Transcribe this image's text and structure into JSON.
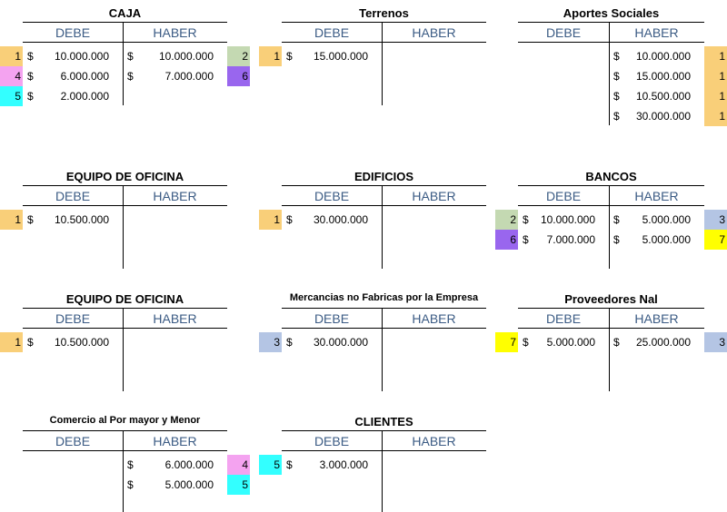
{
  "accounts": [
    {
      "title": "CAJA",
      "debe": {
        "label": "DEBE",
        "entries": [
          {
            "ref": "1",
            "color": "#f9cf79",
            "currency": "$",
            "amount": "10.000.000"
          },
          {
            "ref": "4",
            "color": "#f4a3f0",
            "currency": "$",
            "amount": "6.000.000"
          },
          {
            "ref": "5",
            "color": "#33ffff",
            "currency": "$",
            "amount": "2.000.000"
          }
        ]
      },
      "haber": {
        "label": "HABER",
        "entries": [
          {
            "ref": "2",
            "color": "#c4d9b2",
            "currency": "$",
            "amount": "10.000.000"
          },
          {
            "ref": "6",
            "color": "#9966ee",
            "currency": "$",
            "amount": "7.000.000"
          }
        ]
      }
    },
    {
      "title": "Terrenos",
      "debe": {
        "label": "DEBE",
        "entries": [
          {
            "ref": "1",
            "color": "#f9cf79",
            "currency": "$",
            "amount": "15.000.000"
          }
        ]
      },
      "haber": {
        "label": "HABER",
        "entries": []
      }
    },
    {
      "title": "Aportes Sociales",
      "debe": {
        "label": "DEBE",
        "entries": []
      },
      "haber": {
        "label": "HABER",
        "entries": [
          {
            "ref": "1",
            "color": "#f9cf79",
            "currency": "$",
            "amount": "10.000.000"
          },
          {
            "ref": "1",
            "color": "#f9cf79",
            "currency": "$",
            "amount": "15.000.000"
          },
          {
            "ref": "1",
            "color": "#f9cf79",
            "currency": "$",
            "amount": "10.500.000"
          },
          {
            "ref": "1",
            "color": "#f9cf79",
            "currency": "$",
            "amount": "30.000.000"
          }
        ]
      }
    },
    {
      "title": "EQUIPO DE OFICINA",
      "debe": {
        "label": "DEBE",
        "entries": [
          {
            "ref": "1",
            "color": "#f9cf79",
            "currency": "$",
            "amount": "10.500.000"
          }
        ]
      },
      "haber": {
        "label": "HABER",
        "entries": []
      }
    },
    {
      "title": "EDIFICIOS",
      "debe": {
        "label": "DEBE",
        "entries": [
          {
            "ref": "1",
            "color": "#f9cf79",
            "currency": "$",
            "amount": "30.000.000"
          }
        ]
      },
      "haber": {
        "label": "HABER",
        "entries": []
      }
    },
    {
      "title": "BANCOS",
      "debe": {
        "label": "DEBE",
        "entries": [
          {
            "ref": "2",
            "color": "#c4d9b2",
            "currency": "$",
            "amount": "10.000.000"
          },
          {
            "ref": "6",
            "color": "#9966ee",
            "currency": "$",
            "amount": "7.000.000"
          }
        ]
      },
      "haber": {
        "label": "HABER",
        "entries": [
          {
            "ref": "3",
            "color": "#b4c5e4",
            "currency": "$",
            "amount": "5.000.000"
          },
          {
            "ref": "7",
            "color": "#ffff00",
            "currency": "$",
            "amount": "5.000.000"
          }
        ]
      }
    },
    {
      "title": "EQUIPO DE OFICINA",
      "debe": {
        "label": "DEBE",
        "entries": [
          {
            "ref": "1",
            "color": "#f9cf79",
            "currency": "$",
            "amount": "10.500.000"
          }
        ]
      },
      "haber": {
        "label": "HABER",
        "entries": []
      }
    },
    {
      "title": "Mercancias no Fabricas por la Empresa",
      "debe": {
        "label": "DEBE",
        "entries": [
          {
            "ref": "3",
            "color": "#b4c5e4",
            "currency": "$",
            "amount": "30.000.000"
          }
        ]
      },
      "haber": {
        "label": "HABER",
        "entries": []
      }
    },
    {
      "title": "Proveedores Nal",
      "debe": {
        "label": "DEBE",
        "entries": [
          {
            "ref": "7",
            "color": "#ffff00",
            "currency": "$",
            "amount": "5.000.000"
          }
        ]
      },
      "haber": {
        "label": "HABER",
        "entries": [
          {
            "ref": "3",
            "color": "#b4c5e4",
            "currency": "$",
            "amount": "25.000.000"
          }
        ]
      }
    },
    {
      "title": "Comercio al Por mayor y Menor",
      "debe": {
        "label": "DEBE",
        "entries": []
      },
      "haber": {
        "label": "HABER",
        "entries": [
          {
            "ref": "4",
            "color": "#f4a3f0",
            "currency": "$",
            "amount": "6.000.000"
          },
          {
            "ref": "5",
            "color": "#33ffff",
            "currency": "$",
            "amount": "5.000.000"
          }
        ]
      }
    },
    {
      "title": "CLIENTES",
      "debe": {
        "label": "DEBE",
        "entries": [
          {
            "ref": "5",
            "color": "#33ffff",
            "currency": "$",
            "amount": "3.000.000"
          }
        ]
      },
      "haber": {
        "label": "HABER",
        "entries": []
      }
    }
  ]
}
